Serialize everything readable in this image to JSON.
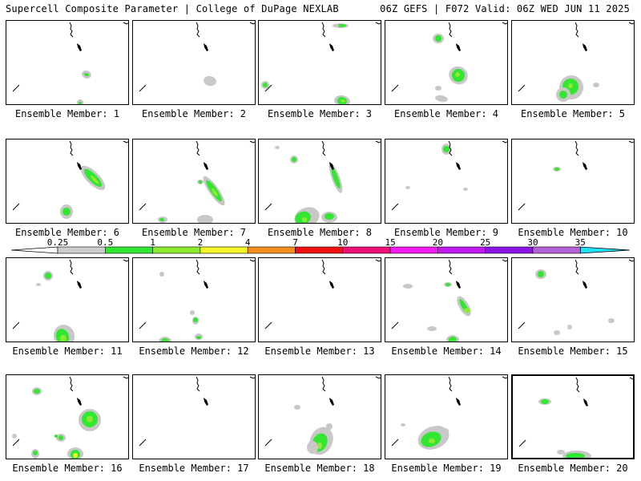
{
  "header": {
    "title": "Supercell Composite Parameter | College of DuPage NEXLAB",
    "run_info": "06Z GEFS | F072 Valid: 06Z WED JUN 11 2025"
  },
  "colorbar": {
    "levels": [
      "0.25",
      "0.5",
      "1",
      "2",
      "4",
      "7",
      "10",
      "15",
      "20",
      "25",
      "30",
      "35"
    ],
    "colors": [
      "#ffffff",
      "#cccccc",
      "#32e632",
      "#8ceb2e",
      "#f5f52b",
      "#f28c1c",
      "#ee1111",
      "#ee1177",
      "#f01bf0",
      "#c01bf0",
      "#8a14e6",
      "#b362d9",
      "#20e1f0"
    ]
  },
  "members": [
    {
      "label": "Ensemble Member: 1"
    },
    {
      "label": "Ensemble Member: 2"
    },
    {
      "label": "Ensemble Member: 3"
    },
    {
      "label": "Ensemble Member: 4"
    },
    {
      "label": "Ensemble Member: 5"
    },
    {
      "label": "Ensemble Member: 6"
    },
    {
      "label": "Ensemble Member: 7"
    },
    {
      "label": "Ensemble Member: 8"
    },
    {
      "label": "Ensemble Member: 9"
    },
    {
      "label": "Ensemble Member: 10"
    },
    {
      "label": "Ensemble Member: 11"
    },
    {
      "label": "Ensemble Member: 12"
    },
    {
      "label": "Ensemble Member: 13"
    },
    {
      "label": "Ensemble Member: 14"
    },
    {
      "label": "Ensemble Member: 15"
    },
    {
      "label": "Ensemble Member: 16"
    },
    {
      "label": "Ensemble Member: 17"
    },
    {
      "label": "Ensemble Member: 18"
    },
    {
      "label": "Ensemble Member: 19"
    },
    {
      "label": "Ensemble Member: 20",
      "selected": true
    }
  ]
}
